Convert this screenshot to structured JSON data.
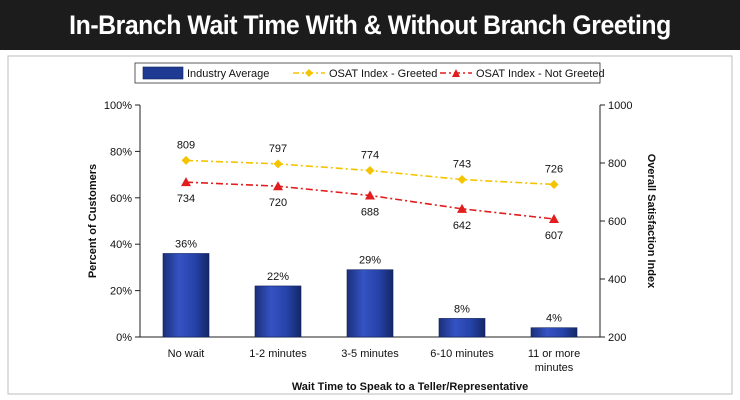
{
  "title": "In-Branch Wait Time With & Without Branch Greeting",
  "chart_data": {
    "type": "bar",
    "title": "In-Branch Wait Time With & Without Branch Greeting",
    "xlabel": "Wait Time to Speak to a Teller/Representative",
    "ylabel": "Percent of Customers",
    "y2label": "Overall Satisfaction Index",
    "categories": [
      [
        "No wait"
      ],
      [
        "1-2 minutes"
      ],
      [
        "3-5 minutes"
      ],
      [
        "6-10 minutes"
      ],
      [
        "11 or more",
        "minutes"
      ]
    ],
    "ylim": [
      0,
      100
    ],
    "y2lim": [
      200,
      1000
    ],
    "yticks": [
      "0%",
      "20%",
      "40%",
      "60%",
      "80%",
      "100%"
    ],
    "y2ticks": [
      "200",
      "400",
      "600",
      "800",
      "1000"
    ],
    "grid": false,
    "legend_position": "top",
    "series": [
      {
        "name": "Industry Average",
        "kind": "bar",
        "axis": "left",
        "values": [
          36,
          22,
          29,
          8,
          4
        ],
        "labels": [
          "36%",
          "22%",
          "29%",
          "8%",
          "4%"
        ],
        "color": "#1f3a93"
      },
      {
        "name": "OSAT Index - Greeted",
        "kind": "line",
        "axis": "right",
        "values": [
          809,
          797,
          774,
          743,
          726
        ],
        "labels": [
          "809",
          "797",
          "774",
          "743",
          "726"
        ],
        "color": "#f5c400",
        "marker": "diamond"
      },
      {
        "name": "OSAT Index - Not Greeted",
        "kind": "line",
        "axis": "right",
        "values": [
          734,
          720,
          688,
          642,
          607
        ],
        "labels": [
          "734",
          "720",
          "688",
          "642",
          "607"
        ],
        "color": "#e11d1d",
        "marker": "triangle"
      }
    ]
  }
}
